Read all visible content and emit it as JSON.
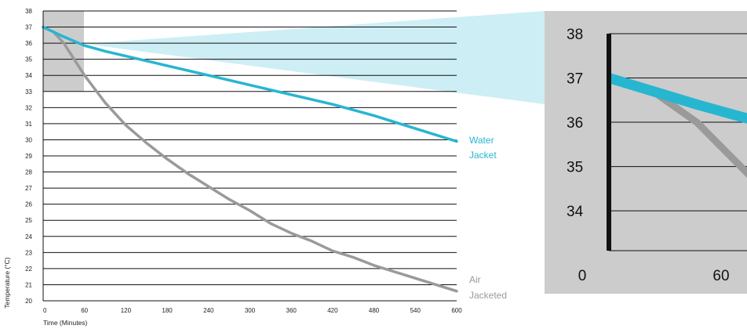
{
  "chart_data": [
    {
      "type": "line",
      "xlabel": "Time (Minutes)",
      "ylabel": "Temperature (°C)",
      "xlim": [
        0,
        600
      ],
      "ylim": [
        20,
        38
      ],
      "x_ticks": [
        0,
        60,
        120,
        180,
        240,
        300,
        360,
        420,
        480,
        540,
        600
      ],
      "y_ticks": [
        20,
        21,
        22,
        23,
        24,
        25,
        26,
        27,
        28,
        29,
        30,
        31,
        32,
        33,
        34,
        35,
        36,
        37,
        38
      ],
      "grid": "horizontal",
      "series": [
        {
          "name": "Water Jacket",
          "color": "#27b6d0",
          "x": [
            0,
            30,
            60,
            90,
            120,
            180,
            240,
            300,
            360,
            420,
            480,
            540,
            600
          ],
          "y": [
            37.0,
            36.4,
            35.85,
            35.5,
            35.2,
            34.6,
            34.0,
            33.4,
            32.8,
            32.2,
            31.5,
            30.7,
            29.9
          ]
        },
        {
          "name": "Air Jacketed",
          "color": "#9a9a9a",
          "x": [
            0,
            15,
            30,
            45,
            60,
            90,
            120,
            150,
            180,
            210,
            240,
            270,
            300,
            330,
            360,
            390,
            420,
            450,
            480,
            510,
            540,
            570,
            600
          ],
          "y": [
            37.0,
            36.7,
            36.0,
            35.0,
            34.0,
            32.3,
            30.9,
            29.8,
            28.8,
            27.9,
            27.1,
            26.3,
            25.6,
            24.8,
            24.2,
            23.7,
            23.1,
            22.7,
            22.2,
            21.8,
            21.4,
            21.0,
            20.6
          ]
        }
      ],
      "zoom_region": {
        "x": [
          0,
          60
        ],
        "y": [
          33,
          38
        ]
      },
      "colors": {
        "zoom_box": "#cccccc",
        "zoom_wedge": "#cdeef4",
        "grid": "#111111"
      }
    },
    {
      "type": "line",
      "x_ticks": [
        0,
        60
      ],
      "y_ticks": [
        34,
        35,
        36,
        37,
        38
      ],
      "xlim": [
        0,
        60
      ],
      "ylim": [
        33.1,
        38
      ],
      "grid": "horizontal"
    }
  ]
}
